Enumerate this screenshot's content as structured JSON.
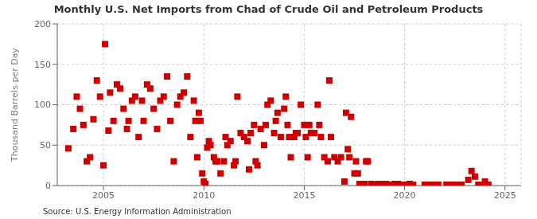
{
  "chart_data": {
    "type": "scatter",
    "title": "Monthly U.S. Net Imports from Chad of Crude Oil and Petroleum Products",
    "ylabel": "Thousand Barrels per Day",
    "source": "Source: U.S. Energy Information Administration",
    "color": "#cc0000",
    "marker": "square",
    "grid": true,
    "xlim": [
      2002.7,
      2025.8
    ],
    "xticks": [
      2005,
      2010,
      2015,
      2020,
      2025
    ],
    "ylim": [
      0,
      200
    ],
    "yticks": [
      0,
      50,
      100,
      150,
      200
    ],
    "x": [
      2003.25,
      2003.5,
      2003.67,
      2003.83,
      2004.0,
      2004.17,
      2004.33,
      2004.5,
      2004.67,
      2004.83,
      2005.0,
      2005.08,
      2005.25,
      2005.33,
      2005.5,
      2005.67,
      2005.83,
      2006.0,
      2006.17,
      2006.25,
      2006.42,
      2006.58,
      2006.75,
      2006.92,
      2007.0,
      2007.17,
      2007.33,
      2007.5,
      2007.67,
      2007.83,
      2008.0,
      2008.17,
      2008.33,
      2008.5,
      2008.67,
      2008.83,
      2009.0,
      2009.17,
      2009.33,
      2009.5,
      2009.58,
      2009.67,
      2009.75,
      2009.83,
      2009.92,
      2010.0,
      2010.08,
      2010.17,
      2010.25,
      2010.33,
      2010.5,
      2010.58,
      2010.67,
      2010.83,
      2011.0,
      2011.08,
      2011.17,
      2011.33,
      2011.5,
      2011.58,
      2011.67,
      2011.83,
      2012.0,
      2012.17,
      2012.25,
      2012.33,
      2012.5,
      2012.58,
      2012.67,
      2012.83,
      2013.0,
      2013.08,
      2013.17,
      2013.33,
      2013.5,
      2013.58,
      2013.67,
      2013.83,
      2014.0,
      2014.08,
      2014.17,
      2014.25,
      2014.33,
      2014.5,
      2014.58,
      2014.67,
      2014.83,
      2015.0,
      2015.08,
      2015.17,
      2015.25,
      2015.33,
      2015.5,
      2015.67,
      2015.75,
      2015.83,
      2016.0,
      2016.17,
      2016.25,
      2016.33,
      2016.5,
      2016.67,
      2016.83,
      2017.0,
      2017.08,
      2017.17,
      2017.25,
      2017.33,
      2017.5,
      2017.58,
      2017.67,
      2017.75,
      2017.83,
      2018.0,
      2018.08,
      2018.17,
      2018.33,
      2018.5,
      2018.67,
      2018.83,
      2019.0,
      2019.08,
      2019.17,
      2019.25,
      2019.5,
      2019.67,
      2019.83,
      2020.0,
      2020.08,
      2020.17,
      2020.25,
      2020.42,
      2021.0,
      2021.17,
      2021.25,
      2021.5,
      2021.67,
      2022.08,
      2022.17,
      2022.25,
      2022.5,
      2022.67,
      2022.83,
      2023.17,
      2023.33,
      2023.5,
      2023.67,
      2023.83,
      2024.0,
      2024.17
    ],
    "values": [
      46,
      70,
      110,
      95,
      75,
      30,
      35,
      82,
      130,
      110,
      25,
      175,
      68,
      115,
      80,
      125,
      120,
      95,
      70,
      80,
      105,
      110,
      60,
      105,
      80,
      125,
      120,
      95,
      70,
      105,
      110,
      135,
      80,
      30,
      100,
      110,
      115,
      135,
      60,
      105,
      80,
      35,
      90,
      80,
      15,
      5,
      2,
      47,
      55,
      50,
      35,
      30,
      30,
      15,
      30,
      60,
      50,
      55,
      25,
      30,
      110,
      65,
      60,
      55,
      20,
      65,
      75,
      30,
      25,
      70,
      50,
      75,
      100,
      105,
      65,
      80,
      90,
      60,
      95,
      110,
      75,
      60,
      35,
      60,
      65,
      65,
      100,
      75,
      60,
      35,
      75,
      65,
      65,
      100,
      75,
      60,
      35,
      30,
      130,
      60,
      35,
      30,
      35,
      5,
      90,
      45,
      35,
      85,
      15,
      30,
      15,
      2,
      1,
      2,
      30,
      30,
      2,
      1,
      2,
      2,
      1,
      2,
      1,
      1,
      2,
      2,
      1,
      1,
      1,
      1,
      2,
      1,
      1,
      1,
      1,
      1,
      1,
      1,
      1,
      1,
      1,
      1,
      1,
      7,
      18,
      11,
      1,
      1,
      5,
      1
    ]
  }
}
